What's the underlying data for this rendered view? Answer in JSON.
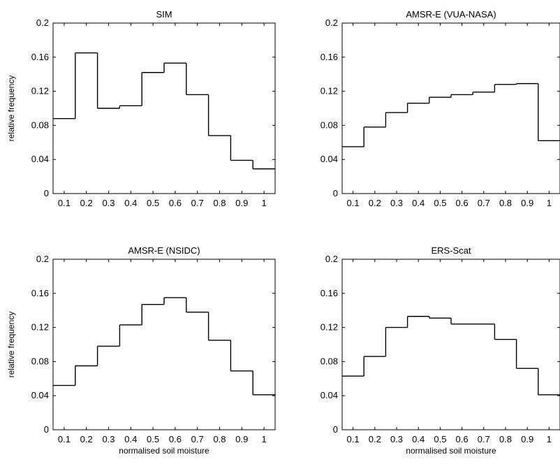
{
  "chart_data": [
    {
      "type": "bar",
      "subtype": "stairs-histogram",
      "title": "SIM",
      "xlabel": "",
      "ylabel": "relative frequency",
      "xlim": [
        0.05,
        1.05
      ],
      "ylim": [
        0,
        0.2
      ],
      "xticks": [
        "0.1",
        "0.2",
        "0.3",
        "0.4",
        "0.5",
        "0.6",
        "0.7",
        "0.8",
        "0.9",
        "1"
      ],
      "yticks": [
        "0",
        "0.04",
        "0.08",
        "0.12",
        "0.16",
        "0.2"
      ],
      "categories": [
        "0.1",
        "0.2",
        "0.3",
        "0.4",
        "0.5",
        "0.6",
        "0.7",
        "0.8",
        "0.9",
        "1"
      ],
      "values": [
        0.088,
        0.165,
        0.1,
        0.103,
        0.142,
        0.153,
        0.116,
        0.068,
        0.039,
        0.029
      ],
      "grid": false
    },
    {
      "type": "bar",
      "subtype": "stairs-histogram",
      "title": "AMSR-E (VUA-NASA)",
      "xlabel": "",
      "ylabel": "",
      "xlim": [
        0.05,
        1.05
      ],
      "ylim": [
        0,
        0.2
      ],
      "xticks": [
        "0.1",
        "0.2",
        "0.3",
        "0.4",
        "0.5",
        "0.6",
        "0.7",
        "0.8",
        "0.9",
        "1"
      ],
      "yticks": [
        "0",
        "0.04",
        "0.08",
        "0.12",
        "0.16",
        "0.2"
      ],
      "categories": [
        "0.1",
        "0.2",
        "0.3",
        "0.4",
        "0.5",
        "0.6",
        "0.7",
        "0.8",
        "0.9",
        "1"
      ],
      "values": [
        0.055,
        0.078,
        0.095,
        0.106,
        0.113,
        0.116,
        0.119,
        0.128,
        0.129,
        0.062
      ],
      "grid": false
    },
    {
      "type": "bar",
      "subtype": "stairs-histogram",
      "title": "AMSR-E (NSIDC)",
      "xlabel": "normalised soil moisture",
      "ylabel": "relative frequency",
      "xlim": [
        0.05,
        1.05
      ],
      "ylim": [
        0,
        0.2
      ],
      "xticks": [
        "0.1",
        "0.2",
        "0.3",
        "0.4",
        "0.5",
        "0.6",
        "0.7",
        "0.8",
        "0.9",
        "1"
      ],
      "yticks": [
        "0",
        "0.04",
        "0.08",
        "0.12",
        "0.16",
        "0.2"
      ],
      "categories": [
        "0.1",
        "0.2",
        "0.3",
        "0.4",
        "0.5",
        "0.6",
        "0.7",
        "0.8",
        "0.9",
        "1"
      ],
      "values": [
        0.052,
        0.075,
        0.098,
        0.123,
        0.147,
        0.155,
        0.138,
        0.105,
        0.069,
        0.041
      ],
      "grid": false
    },
    {
      "type": "bar",
      "subtype": "stairs-histogram",
      "title": "ERS-Scat",
      "xlabel": "normalised soil moisture",
      "ylabel": "",
      "xlim": [
        0.05,
        1.05
      ],
      "ylim": [
        0,
        0.2
      ],
      "xticks": [
        "0.1",
        "0.2",
        "0.3",
        "0.4",
        "0.5",
        "0.6",
        "0.7",
        "0.8",
        "0.9",
        "1"
      ],
      "yticks": [
        "0",
        "0.04",
        "0.08",
        "0.12",
        "0.16",
        "0.2"
      ],
      "categories": [
        "0.1",
        "0.2",
        "0.3",
        "0.4",
        "0.5",
        "0.6",
        "0.7",
        "0.8",
        "0.9",
        "1"
      ],
      "values": [
        0.063,
        0.086,
        0.12,
        0.133,
        0.131,
        0.124,
        0.124,
        0.106,
        0.072,
        0.041
      ],
      "grid": false
    }
  ]
}
